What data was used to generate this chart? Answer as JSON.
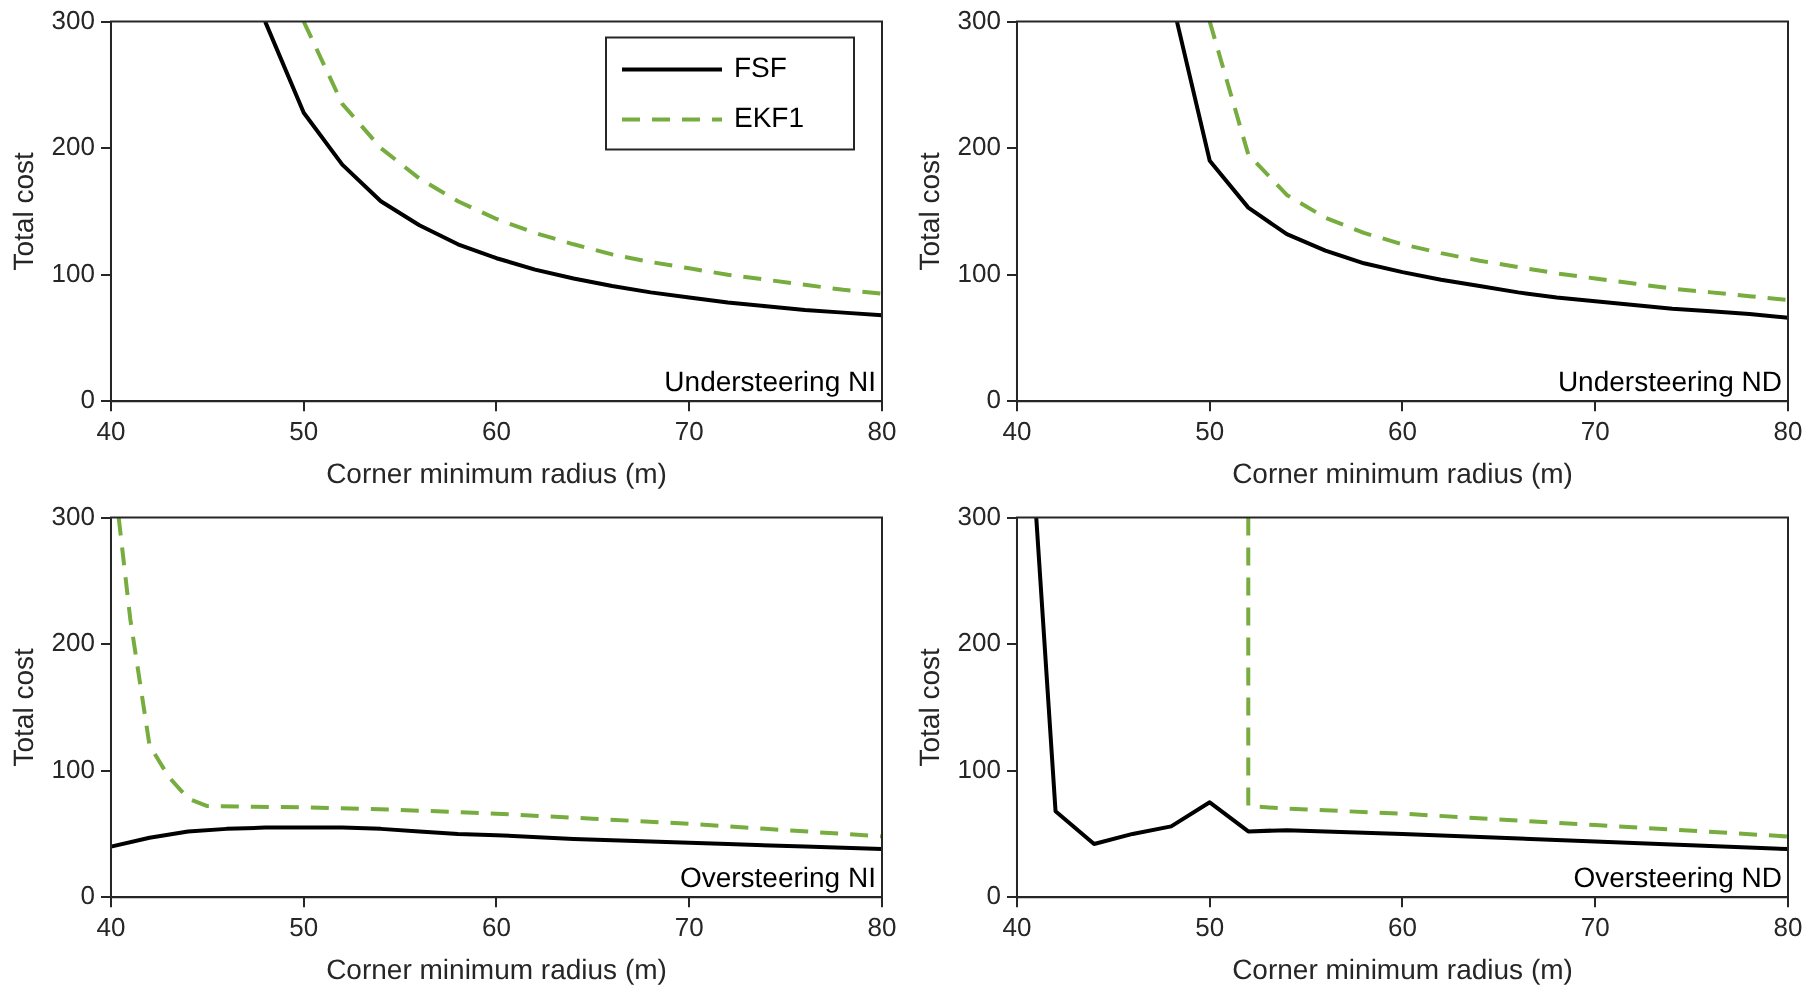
{
  "chart_data": [
    {
      "type": "line",
      "xlabel": "Corner minimum radius (m)",
      "ylabel": "Total cost",
      "xlim": [
        40,
        80
      ],
      "xticks": [
        40,
        50,
        60,
        70,
        80
      ],
      "ylim": [
        0,
        300
      ],
      "yticks": [
        0,
        100,
        200,
        300
      ],
      "grid": false,
      "legend": "top right",
      "annotations": [
        "Understeering NI"
      ],
      "series": [
        {
          "name": "FSF",
          "color": "#000000",
          "line_style": "solid",
          "x": [
            48,
            50,
            52,
            54,
            56,
            58,
            60,
            62,
            64,
            66,
            68,
            70,
            72,
            74,
            76,
            78,
            80
          ],
          "values": [
            300,
            228,
            187,
            158,
            139,
            124,
            113,
            104,
            97,
            91,
            86,
            82,
            78,
            75,
            72,
            70,
            68
          ]
        },
        {
          "name": "EKF1",
          "color": "#77ac3f",
          "line_style": "dashed",
          "x": [
            50,
            52,
            54,
            56,
            58,
            60,
            62,
            64,
            66,
            68,
            70,
            72,
            74,
            76,
            78,
            80
          ],
          "values": [
            300,
            235,
            200,
            176,
            158,
            144,
            133,
            124,
            116,
            110,
            105,
            100,
            96,
            92,
            88,
            85
          ]
        }
      ]
    },
    {
      "type": "line",
      "xlabel": "Corner minimum radius (m)",
      "ylabel": "Total cost",
      "xlim": [
        40,
        80
      ],
      "xticks": [
        40,
        50,
        60,
        70,
        80
      ],
      "ylim": [
        0,
        300
      ],
      "yticks": [
        0,
        100,
        200,
        300
      ],
      "grid": false,
      "annotations": [
        "Understeering ND"
      ],
      "series": [
        {
          "color": "#000000",
          "line_style": "solid",
          "x": [
            48.3,
            50,
            52,
            54,
            56,
            58,
            60,
            62,
            64,
            66,
            68,
            70,
            72,
            74,
            76,
            78,
            80
          ],
          "values": [
            300,
            190,
            153,
            132,
            119,
            109,
            102,
            96,
            91,
            86,
            82,
            79,
            76,
            73,
            71,
            69,
            66
          ]
        },
        {
          "color": "#77ac3f",
          "line_style": "dashed",
          "x": [
            50,
            52,
            54,
            56,
            58,
            60,
            62,
            64,
            66,
            68,
            70,
            72,
            74,
            76,
            78,
            80
          ],
          "values": [
            300,
            195,
            163,
            145,
            133,
            124,
            117,
            111,
            106,
            101,
            97,
            93,
            89,
            86,
            83,
            80
          ]
        }
      ]
    },
    {
      "type": "line",
      "xlabel": "Corner minimum radius (m)",
      "ylabel": "Total cost",
      "xlim": [
        40,
        80
      ],
      "xticks": [
        40,
        50,
        60,
        70,
        80
      ],
      "ylim": [
        0,
        300
      ],
      "yticks": [
        0,
        100,
        200,
        300
      ],
      "grid": false,
      "annotations": [
        "Oversteering NI"
      ],
      "series": [
        {
          "color": "#000000",
          "line_style": "solid",
          "x": [
            40,
            42,
            44,
            46,
            48,
            50,
            52,
            54,
            56,
            58,
            60,
            64,
            68,
            72,
            76,
            80
          ],
          "values": [
            40,
            47,
            52,
            54,
            55,
            55,
            55,
            54,
            52,
            50,
            49,
            46,
            44,
            42,
            40,
            38
          ]
        },
        {
          "color": "#77ac3f",
          "line_style": "dashed",
          "x": [
            40.4,
            41,
            42,
            43,
            44,
            45,
            50,
            55,
            60,
            65,
            70,
            75,
            80
          ],
          "values": [
            300,
            220,
            120,
            95,
            78,
            72,
            71,
            69,
            66,
            62,
            58,
            53,
            48
          ]
        }
      ]
    },
    {
      "type": "line",
      "xlabel": "Corner minimum radius (m)",
      "ylabel": "Total cost",
      "xlim": [
        40,
        80
      ],
      "xticks": [
        40,
        50,
        60,
        70,
        80
      ],
      "ylim": [
        0,
        300
      ],
      "yticks": [
        0,
        100,
        200,
        300
      ],
      "grid": false,
      "annotations": [
        "Oversteering ND"
      ],
      "series": [
        {
          "color": "#000000",
          "line_style": "solid",
          "x": [
            41,
            42,
            44,
            46,
            48,
            50,
            52,
            54,
            60,
            70,
            80
          ],
          "values": [
            300,
            68,
            42,
            50,
            56,
            75,
            52,
            53,
            50,
            44,
            38
          ]
        },
        {
          "color": "#77ac3f",
          "line_style": "dashed",
          "x": [
            52,
            52,
            54,
            60,
            70,
            80
          ],
          "values": [
            300,
            72,
            70,
            66,
            57,
            48
          ]
        }
      ]
    }
  ]
}
